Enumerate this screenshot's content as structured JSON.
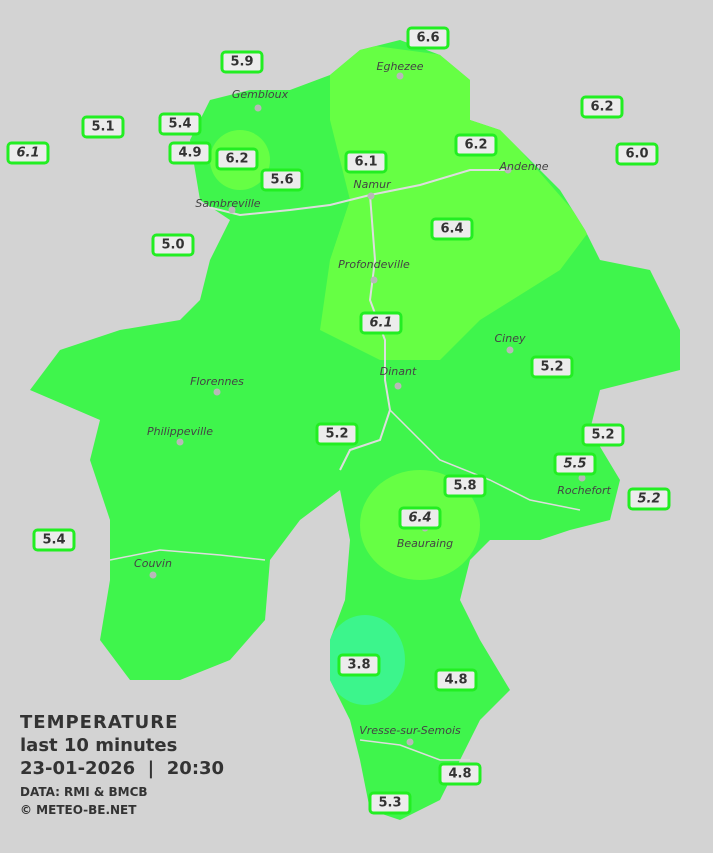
{
  "legend": {
    "title": "TEMPERATURE",
    "subtitle": "last 10 minutes",
    "datetime": "23-01-2026  |  20:30",
    "source": "DATA: RMI & BMCB",
    "copyright": "© METEO-BE.NET"
  },
  "colors": {
    "background": "#d3d3d3",
    "base": "#3ff54c",
    "warm": "#66ff44",
    "cool": "#3cf58c",
    "label_border": "#22ee22"
  },
  "cities": [
    "Eghezee",
    "Gembloux",
    "Andenne",
    "Namur",
    "Sambreville",
    "Profondeville",
    "Ciney",
    "Dinant",
    "Florennes",
    "Philippeville",
    "Rochefort",
    "Beauraing",
    "Couvin",
    "Vresse-sur-Semois"
  ],
  "readings": [
    {
      "value": "6.6",
      "italic": false
    },
    {
      "value": "5.9",
      "italic": false
    },
    {
      "value": "6.2",
      "italic": false
    },
    {
      "value": "5.1",
      "italic": false
    },
    {
      "value": "5.4",
      "italic": false
    },
    {
      "value": "4.9",
      "italic": false
    },
    {
      "value": "6.2",
      "italic": false
    },
    {
      "value": "6.1",
      "italic": false
    },
    {
      "value": "6.2",
      "italic": false
    },
    {
      "value": "6.0",
      "italic": false
    },
    {
      "value": "6.1",
      "italic": true
    },
    {
      "value": "5.6",
      "italic": false
    },
    {
      "value": "5.0",
      "italic": false
    },
    {
      "value": "6.4",
      "italic": false
    },
    {
      "value": "6.1",
      "italic": true
    },
    {
      "value": "5.2",
      "italic": false
    },
    {
      "value": "5.2",
      "italic": false
    },
    {
      "value": "5.2",
      "italic": false
    },
    {
      "value": "5.5",
      "italic": true
    },
    {
      "value": "5.8",
      "italic": false
    },
    {
      "value": "5.2",
      "italic": true
    },
    {
      "value": "6.4",
      "italic": true
    },
    {
      "value": "5.4",
      "italic": false
    },
    {
      "value": "3.8",
      "italic": false
    },
    {
      "value": "4.8",
      "italic": false
    },
    {
      "value": "4.8",
      "italic": false
    },
    {
      "value": "5.3",
      "italic": false
    }
  ]
}
